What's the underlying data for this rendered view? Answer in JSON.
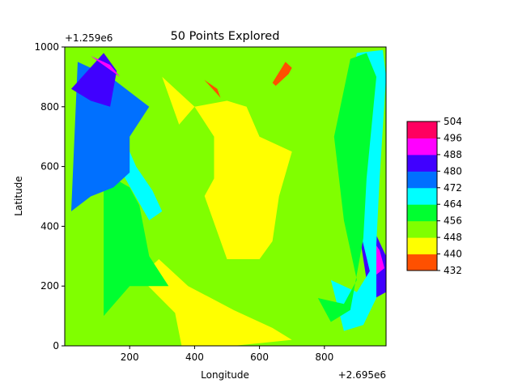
{
  "chart_data": {
    "type": "contour",
    "title": "50 Points Explored",
    "xlabel": "Longitude",
    "ylabel": "Latitude",
    "x_offset_label": "+2.695e6",
    "y_offset_label": "+1.259e6",
    "xlim": [
      0,
      990
    ],
    "ylim": [
      0,
      1000
    ],
    "x_ticks": [
      "200",
      "400",
      "600",
      "800"
    ],
    "y_ticks": [
      "0",
      "200",
      "400",
      "600",
      "800",
      "1000"
    ],
    "colorbar_levels": [
      "432",
      "440",
      "448",
      "456",
      "464",
      "472",
      "480",
      "488",
      "496",
      "504"
    ],
    "colorbar_colors": [
      "#ff5000",
      "#ffff00",
      "#80ff00",
      "#00ff30",
      "#00ffff",
      "#0070ff",
      "#4000ff",
      "#ff00ff",
      "#ff0060"
    ],
    "regions": [
      {
        "level": 1,
        "points": [
          [
            290,
            290
          ],
          [
            380,
            200
          ],
          [
            520,
            120
          ],
          [
            640,
            60
          ],
          [
            700,
            20
          ],
          [
            520,
            0
          ],
          [
            360,
            0
          ],
          [
            340,
            110
          ],
          [
            230,
            230
          ]
        ]
      },
      {
        "level": 1,
        "points": [
          [
            300,
            900
          ],
          [
            400,
            800
          ],
          [
            500,
            820
          ],
          [
            560,
            800
          ],
          [
            600,
            700
          ],
          [
            700,
            650
          ],
          [
            660,
            500
          ],
          [
            640,
            350
          ],
          [
            600,
            290
          ],
          [
            500,
            290
          ]
        ]
      },
      {
        "level": 3,
        "points": [
          [
            120,
            580
          ],
          [
            200,
            530
          ],
          [
            230,
            470
          ],
          [
            260,
            300
          ],
          [
            320,
            200
          ],
          [
            200,
            200
          ],
          [
            120,
            100
          ]
        ]
      },
      {
        "level": 4,
        "points": [
          [
            60,
            800
          ],
          [
            130,
            760
          ],
          [
            180,
            700
          ],
          [
            220,
            600
          ],
          [
            270,
            520
          ],
          [
            300,
            450
          ],
          [
            260,
            420
          ]
        ]
      },
      {
        "level": 5,
        "points": [
          [
            40,
            950
          ],
          [
            140,
            900
          ],
          [
            200,
            850
          ],
          [
            260,
            800
          ],
          [
            200,
            700
          ],
          [
            200,
            580
          ],
          [
            150,
            530
          ],
          [
            80,
            500
          ],
          [
            20,
            450
          ]
        ]
      },
      {
        "level": 6,
        "points": [
          [
            20,
            860
          ],
          [
            80,
            820
          ],
          [
            140,
            800
          ],
          [
            160,
            920
          ],
          [
            120,
            980
          ]
        ]
      },
      {
        "level": 6,
        "points": [
          [
            900,
            430
          ],
          [
            960,
            370
          ],
          [
            990,
            300
          ],
          [
            990,
            180
          ],
          [
            940,
            150
          ]
        ]
      },
      {
        "level": 7,
        "points": [
          [
            80,
            970
          ],
          [
            140,
            940
          ],
          [
            170,
            900
          ]
        ]
      },
      {
        "level": 7,
        "points": [
          [
            930,
            380
          ],
          [
            970,
            320
          ],
          [
            985,
            260
          ],
          [
            950,
            230
          ]
        ]
      },
      {
        "level": 0,
        "points": [
          [
            940,
            340
          ],
          [
            960,
            300
          ],
          [
            950,
            260
          ],
          [
            930,
            300
          ]
        ]
      },
      {
        "level": 0,
        "points": [
          [
            650,
            870
          ],
          [
            690,
            910
          ],
          [
            700,
            930
          ],
          [
            680,
            950
          ],
          [
            640,
            880
          ]
        ]
      },
      {
        "level": 0,
        "points": [
          [
            430,
            890
          ],
          [
            480,
            830
          ],
          [
            470,
            860
          ]
        ]
      },
      {
        "level": 2,
        "points": [
          [
            280,
            650
          ],
          [
            400,
            800
          ],
          [
            460,
            700
          ],
          [
            460,
            560
          ],
          [
            420,
            480
          ],
          [
            320,
            440
          ]
        ]
      },
      {
        "level": 4,
        "points": [
          [
            820,
            220
          ],
          [
            900,
            180
          ],
          [
            940,
            250
          ],
          [
            880,
            520
          ],
          [
            850,
            720
          ],
          [
            900,
            980
          ],
          [
            980,
            990
          ],
          [
            990,
            900
          ],
          [
            970,
            560
          ],
          [
            960,
            340
          ],
          [
            960,
            160
          ],
          [
            920,
            70
          ],
          [
            860,
            50
          ]
        ]
      },
      {
        "level": 3,
        "points": [
          [
            780,
            160
          ],
          [
            860,
            140
          ],
          [
            900,
            220
          ],
          [
            860,
            420
          ],
          [
            830,
            700
          ],
          [
            880,
            960
          ],
          [
            930,
            980
          ],
          [
            960,
            900
          ],
          [
            930,
            560
          ],
          [
            920,
            360
          ],
          [
            880,
            120
          ],
          [
            820,
            80
          ]
        ]
      }
    ],
    "region_pixels": "computed"
  }
}
